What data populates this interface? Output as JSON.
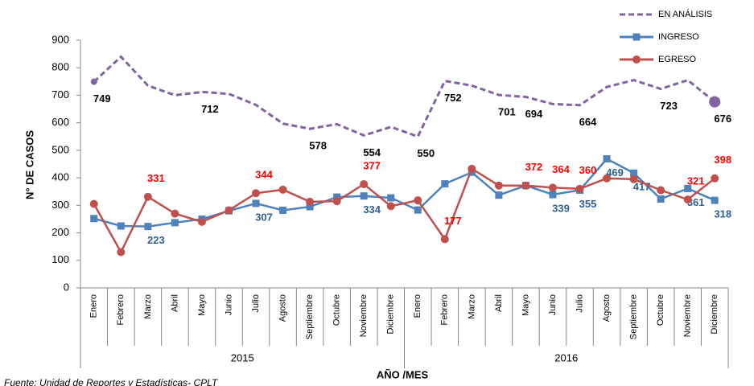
{
  "chart_data": {
    "type": "line",
    "xlabel": "AÑO /MES",
    "ylabel": "N° DE CASOS",
    "source": "Fuente: Unidad de Reportes y Estadísticas- CPLT",
    "categories": [
      "Enero",
      "Febrero",
      "Marzo",
      "Abril",
      "Mayo",
      "Junio",
      "Julio",
      "Agosto",
      "Septiembre",
      "Octubre",
      "Noviembre",
      "Diciembre",
      "Enero",
      "Febrero",
      "Marzo",
      "Abril",
      "Mayo",
      "Junio",
      "Julio",
      "Agosto",
      "Septiembre",
      "Octubre",
      "Noviembre",
      "Diciembre"
    ],
    "groups": [
      "2015",
      "2016"
    ],
    "ylim": [
      0,
      900
    ],
    "yticks": [
      0,
      100,
      200,
      300,
      400,
      500,
      600,
      700,
      800,
      900
    ],
    "legend": "top-right",
    "series": [
      {
        "name": "EN ANÁLISIS",
        "color": "#8064a2",
        "label_color": "#000000",
        "line_style": "dashed",
        "marker": "none",
        "values": [
          749,
          840,
          735,
          700,
          712,
          705,
          665,
          597,
          578,
          595,
          554,
          585,
          550,
          752,
          735,
          701,
          694,
          668,
          664,
          730,
          755,
          723,
          755,
          676
        ],
        "value_labels": [
          "749",
          null,
          null,
          null,
          "712",
          null,
          null,
          null,
          "578",
          null,
          "554",
          null,
          "550",
          "752",
          null,
          "701",
          "694",
          null,
          "664",
          null,
          null,
          "723",
          null,
          "676"
        ]
      },
      {
        "name": "INGRESO",
        "color": "#4f81bd",
        "label_color": "#2e5f99",
        "line_style": "solid",
        "marker": "square",
        "values": [
          252,
          225,
          223,
          237,
          250,
          280,
          307,
          282,
          295,
          330,
          334,
          327,
          283,
          378,
          420,
          337,
          372,
          339,
          355,
          469,
          417,
          323,
          361,
          318
        ],
        "value_labels": [
          null,
          null,
          "223",
          null,
          null,
          null,
          "307",
          null,
          null,
          null,
          "334",
          null,
          null,
          null,
          null,
          null,
          null,
          "339",
          "355",
          "469",
          "417",
          null,
          "361",
          "318"
        ]
      },
      {
        "name": "EGRESO",
        "color": "#c0504d",
        "label_color": "#ff0000",
        "line_style": "solid",
        "marker": "circle",
        "values": [
          305,
          130,
          331,
          270,
          240,
          282,
          344,
          357,
          313,
          315,
          377,
          297,
          318,
          177,
          433,
          372,
          372,
          364,
          360,
          398,
          395,
          355,
          321,
          398
        ],
        "value_labels": [
          null,
          null,
          "331",
          null,
          null,
          null,
          "344",
          null,
          null,
          null,
          "377",
          null,
          null,
          "177",
          null,
          null,
          "372",
          "364",
          "360",
          null,
          null,
          null,
          "321",
          "398"
        ]
      }
    ]
  }
}
